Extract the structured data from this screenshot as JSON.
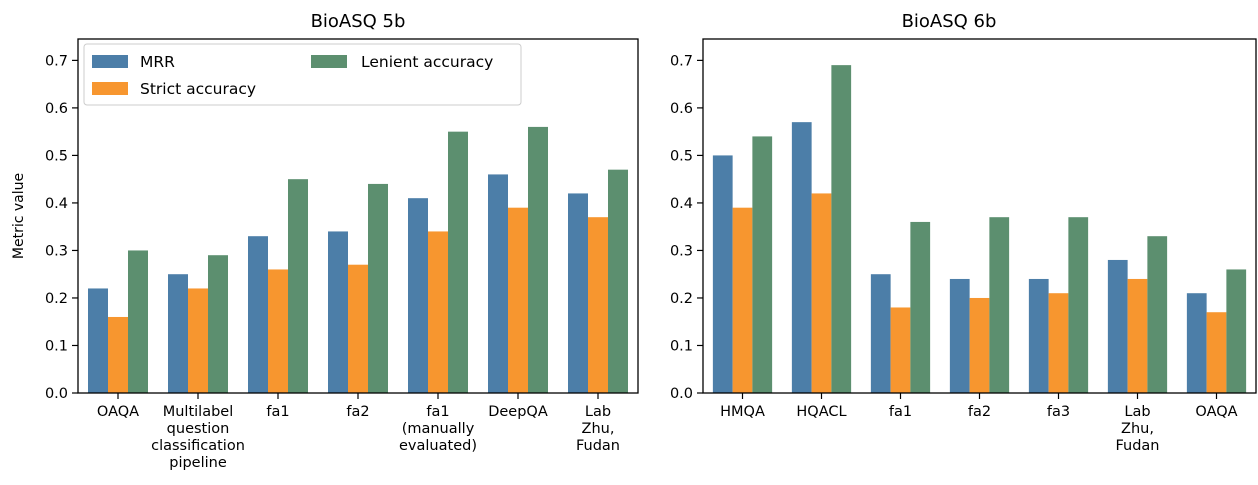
{
  "colors": {
    "MRR": "#4c7ea8",
    "Strict accuracy": "#f7962f",
    "Lenient accuracy": "#5c8f6f"
  },
  "y_label": "Metric value",
  "legend": {
    "entries": [
      "MRR",
      "Strict accuracy",
      "Lenient accuracy"
    ],
    "placement": "top-left"
  },
  "chart_data": [
    {
      "type": "bar",
      "title": "BioASQ 5b",
      "xlabel": "",
      "ylabel": "Metric value",
      "ylim": [
        0,
        0.745
      ],
      "yticks": [
        "0.0",
        "0.1",
        "0.2",
        "0.3",
        "0.4",
        "0.5",
        "0.6",
        "0.7"
      ],
      "grid": false,
      "categories": [
        [
          "OAQA"
        ],
        [
          "Multilabel",
          "question",
          "classification",
          "pipeline"
        ],
        [
          "fa1"
        ],
        [
          "fa2"
        ],
        [
          "fa1",
          "(manually",
          "evaluated)"
        ],
        [
          "DeepQA"
        ],
        [
          "Lab",
          "Zhu,",
          "Fudan"
        ]
      ],
      "series": [
        {
          "name": "MRR",
          "values": [
            0.22,
            0.25,
            0.33,
            0.34,
            0.41,
            0.46,
            0.42
          ]
        },
        {
          "name": "Strict accuracy",
          "values": [
            0.16,
            0.22,
            0.26,
            0.27,
            0.34,
            0.39,
            0.37
          ]
        },
        {
          "name": "Lenient accuracy",
          "values": [
            0.3,
            0.29,
            0.45,
            0.44,
            0.55,
            0.56,
            0.47
          ]
        }
      ]
    },
    {
      "type": "bar",
      "title": "BioASQ 6b",
      "xlabel": "",
      "ylabel": "",
      "ylim": [
        0,
        0.745
      ],
      "yticks": [
        "0.0",
        "0.1",
        "0.2",
        "0.3",
        "0.4",
        "0.5",
        "0.6",
        "0.7"
      ],
      "grid": false,
      "categories": [
        [
          "HMQA"
        ],
        [
          "HQACL"
        ],
        [
          "fa1"
        ],
        [
          "fa2"
        ],
        [
          "fa3"
        ],
        [
          "Lab",
          "Zhu,",
          "Fudan"
        ],
        [
          "OAQA"
        ]
      ],
      "series": [
        {
          "name": "MRR",
          "values": [
            0.5,
            0.57,
            0.25,
            0.24,
            0.24,
            0.28,
            0.21
          ]
        },
        {
          "name": "Strict accuracy",
          "values": [
            0.39,
            0.42,
            0.18,
            0.2,
            0.21,
            0.24,
            0.17
          ]
        },
        {
          "name": "Lenient accuracy",
          "values": [
            0.54,
            0.69,
            0.36,
            0.37,
            0.37,
            0.33,
            0.26
          ]
        }
      ]
    }
  ]
}
